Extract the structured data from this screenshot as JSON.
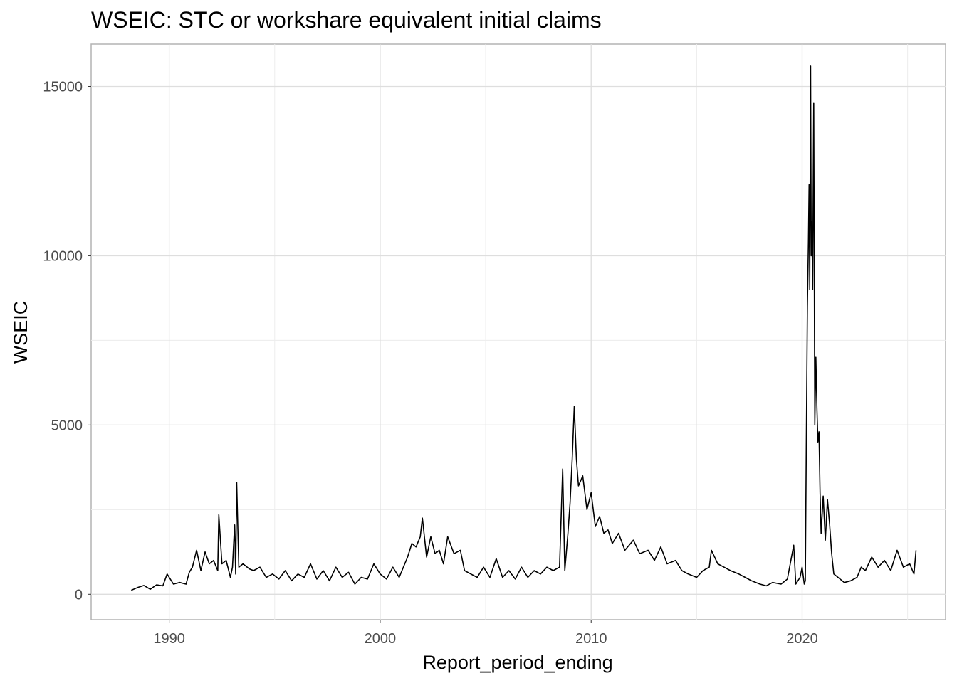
{
  "chart_data": {
    "type": "line",
    "title": "WSEIC: STC or workshare equivalent initial claims",
    "xlabel": "Report_period_ending",
    "ylabel": "WSEIC",
    "xlim": [
      1986.3,
      2026.8
    ],
    "ylim": [
      -750,
      16250
    ],
    "x_ticks": [
      1990,
      2000,
      2010,
      2020
    ],
    "x_tick_labels": [
      "1990",
      "2000",
      "2010",
      "2020"
    ],
    "y_ticks": [
      0,
      5000,
      10000,
      15000
    ],
    "y_tick_labels": [
      "0",
      "5000",
      "10000",
      "15000"
    ],
    "grid": true,
    "line_color": "#000000",
    "series": [
      {
        "values": [
          [
            1988.2,
            120
          ],
          [
            1988.5,
            200
          ],
          [
            1988.8,
            260
          ],
          [
            1989.1,
            150
          ],
          [
            1989.4,
            280
          ],
          [
            1989.7,
            250
          ],
          [
            1989.9,
            600
          ],
          [
            1990.2,
            300
          ],
          [
            1990.5,
            350
          ],
          [
            1990.8,
            300
          ],
          [
            1990.95,
            650
          ],
          [
            1991.1,
            800
          ],
          [
            1991.3,
            1300
          ],
          [
            1991.5,
            700
          ],
          [
            1991.7,
            1250
          ],
          [
            1991.9,
            900
          ],
          [
            1992.1,
            1000
          ],
          [
            1992.3,
            700
          ],
          [
            1992.35,
            2350
          ],
          [
            1992.5,
            900
          ],
          [
            1992.7,
            1000
          ],
          [
            1992.9,
            500
          ],
          [
            1993.0,
            800
          ],
          [
            1993.1,
            2050
          ],
          [
            1993.15,
            600
          ],
          [
            1993.2,
            3300
          ],
          [
            1993.3,
            800
          ],
          [
            1993.5,
            900
          ],
          [
            1993.8,
            750
          ],
          [
            1994.0,
            700
          ],
          [
            1994.3,
            800
          ],
          [
            1994.6,
            500
          ],
          [
            1994.9,
            600
          ],
          [
            1995.2,
            450
          ],
          [
            1995.5,
            700
          ],
          [
            1995.8,
            400
          ],
          [
            1996.1,
            600
          ],
          [
            1996.4,
            500
          ],
          [
            1996.7,
            900
          ],
          [
            1997.0,
            450
          ],
          [
            1997.3,
            700
          ],
          [
            1997.6,
            400
          ],
          [
            1997.9,
            800
          ],
          [
            1998.2,
            500
          ],
          [
            1998.5,
            650
          ],
          [
            1998.8,
            300
          ],
          [
            1999.1,
            500
          ],
          [
            1999.4,
            450
          ],
          [
            1999.7,
            900
          ],
          [
            2000.0,
            600
          ],
          [
            2000.3,
            450
          ],
          [
            2000.6,
            800
          ],
          [
            2000.9,
            500
          ],
          [
            2001.1,
            800
          ],
          [
            2001.3,
            1100
          ],
          [
            2001.5,
            1500
          ],
          [
            2001.7,
            1400
          ],
          [
            2001.9,
            1700
          ],
          [
            2002.0,
            2250
          ],
          [
            2002.2,
            1100
          ],
          [
            2002.4,
            1700
          ],
          [
            2002.6,
            1200
          ],
          [
            2002.8,
            1300
          ],
          [
            2003.0,
            900
          ],
          [
            2003.2,
            1700
          ],
          [
            2003.5,
            1200
          ],
          [
            2003.8,
            1300
          ],
          [
            2004.0,
            700
          ],
          [
            2004.3,
            600
          ],
          [
            2004.6,
            500
          ],
          [
            2004.9,
            800
          ],
          [
            2005.2,
            500
          ],
          [
            2005.5,
            1050
          ],
          [
            2005.8,
            500
          ],
          [
            2006.1,
            700
          ],
          [
            2006.4,
            450
          ],
          [
            2006.7,
            800
          ],
          [
            2007.0,
            500
          ],
          [
            2007.3,
            700
          ],
          [
            2007.6,
            600
          ],
          [
            2007.9,
            800
          ],
          [
            2008.2,
            700
          ],
          [
            2008.5,
            800
          ],
          [
            2008.65,
            3700
          ],
          [
            2008.75,
            700
          ],
          [
            2008.9,
            1800
          ],
          [
            2009.0,
            2700
          ],
          [
            2009.1,
            4000
          ],
          [
            2009.2,
            5550
          ],
          [
            2009.3,
            4000
          ],
          [
            2009.4,
            3200
          ],
          [
            2009.6,
            3500
          ],
          [
            2009.8,
            2500
          ],
          [
            2010.0,
            3000
          ],
          [
            2010.2,
            2000
          ],
          [
            2010.4,
            2300
          ],
          [
            2010.6,
            1800
          ],
          [
            2010.8,
            1900
          ],
          [
            2011.0,
            1500
          ],
          [
            2011.3,
            1800
          ],
          [
            2011.6,
            1300
          ],
          [
            2012.0,
            1600
          ],
          [
            2012.3,
            1200
          ],
          [
            2012.7,
            1300
          ],
          [
            2013.0,
            1000
          ],
          [
            2013.3,
            1400
          ],
          [
            2013.6,
            900
          ],
          [
            2014.0,
            1000
          ],
          [
            2014.3,
            700
          ],
          [
            2014.6,
            600
          ],
          [
            2015.0,
            500
          ],
          [
            2015.3,
            700
          ],
          [
            2015.6,
            800
          ],
          [
            2015.7,
            1300
          ],
          [
            2016.0,
            900
          ],
          [
            2016.3,
            800
          ],
          [
            2016.6,
            700
          ],
          [
            2017.0,
            600
          ],
          [
            2017.3,
            500
          ],
          [
            2017.6,
            400
          ],
          [
            2018.0,
            300
          ],
          [
            2018.3,
            250
          ],
          [
            2018.6,
            350
          ],
          [
            2019.0,
            300
          ],
          [
            2019.3,
            450
          ],
          [
            2019.6,
            1450
          ],
          [
            2019.7,
            300
          ],
          [
            2019.9,
            500
          ],
          [
            2020.0,
            800
          ],
          [
            2020.1,
            300
          ],
          [
            2020.15,
            400
          ],
          [
            2020.2,
            4500
          ],
          [
            2020.25,
            8500
          ],
          [
            2020.3,
            10500
          ],
          [
            2020.33,
            12100
          ],
          [
            2020.36,
            9000
          ],
          [
            2020.4,
            15600
          ],
          [
            2020.43,
            10000
          ],
          [
            2020.46,
            11000
          ],
          [
            2020.5,
            9000
          ],
          [
            2020.55,
            14500
          ],
          [
            2020.6,
            5000
          ],
          [
            2020.65,
            7000
          ],
          [
            2020.7,
            5500
          ],
          [
            2020.75,
            4500
          ],
          [
            2020.8,
            4800
          ],
          [
            2020.85,
            3000
          ],
          [
            2020.9,
            1800
          ],
          [
            2021.0,
            2900
          ],
          [
            2021.1,
            1600
          ],
          [
            2021.2,
            2800
          ],
          [
            2021.3,
            2100
          ],
          [
            2021.4,
            1200
          ],
          [
            2021.5,
            600
          ],
          [
            2021.7,
            500
          ],
          [
            2022.0,
            350
          ],
          [
            2022.3,
            400
          ],
          [
            2022.6,
            500
          ],
          [
            2022.8,
            800
          ],
          [
            2023.0,
            700
          ],
          [
            2023.3,
            1100
          ],
          [
            2023.6,
            800
          ],
          [
            2023.9,
            1000
          ],
          [
            2024.2,
            700
          ],
          [
            2024.5,
            1300
          ],
          [
            2024.8,
            800
          ],
          [
            2025.1,
            900
          ],
          [
            2025.3,
            600
          ],
          [
            2025.4,
            1300
          ]
        ]
      }
    ]
  }
}
